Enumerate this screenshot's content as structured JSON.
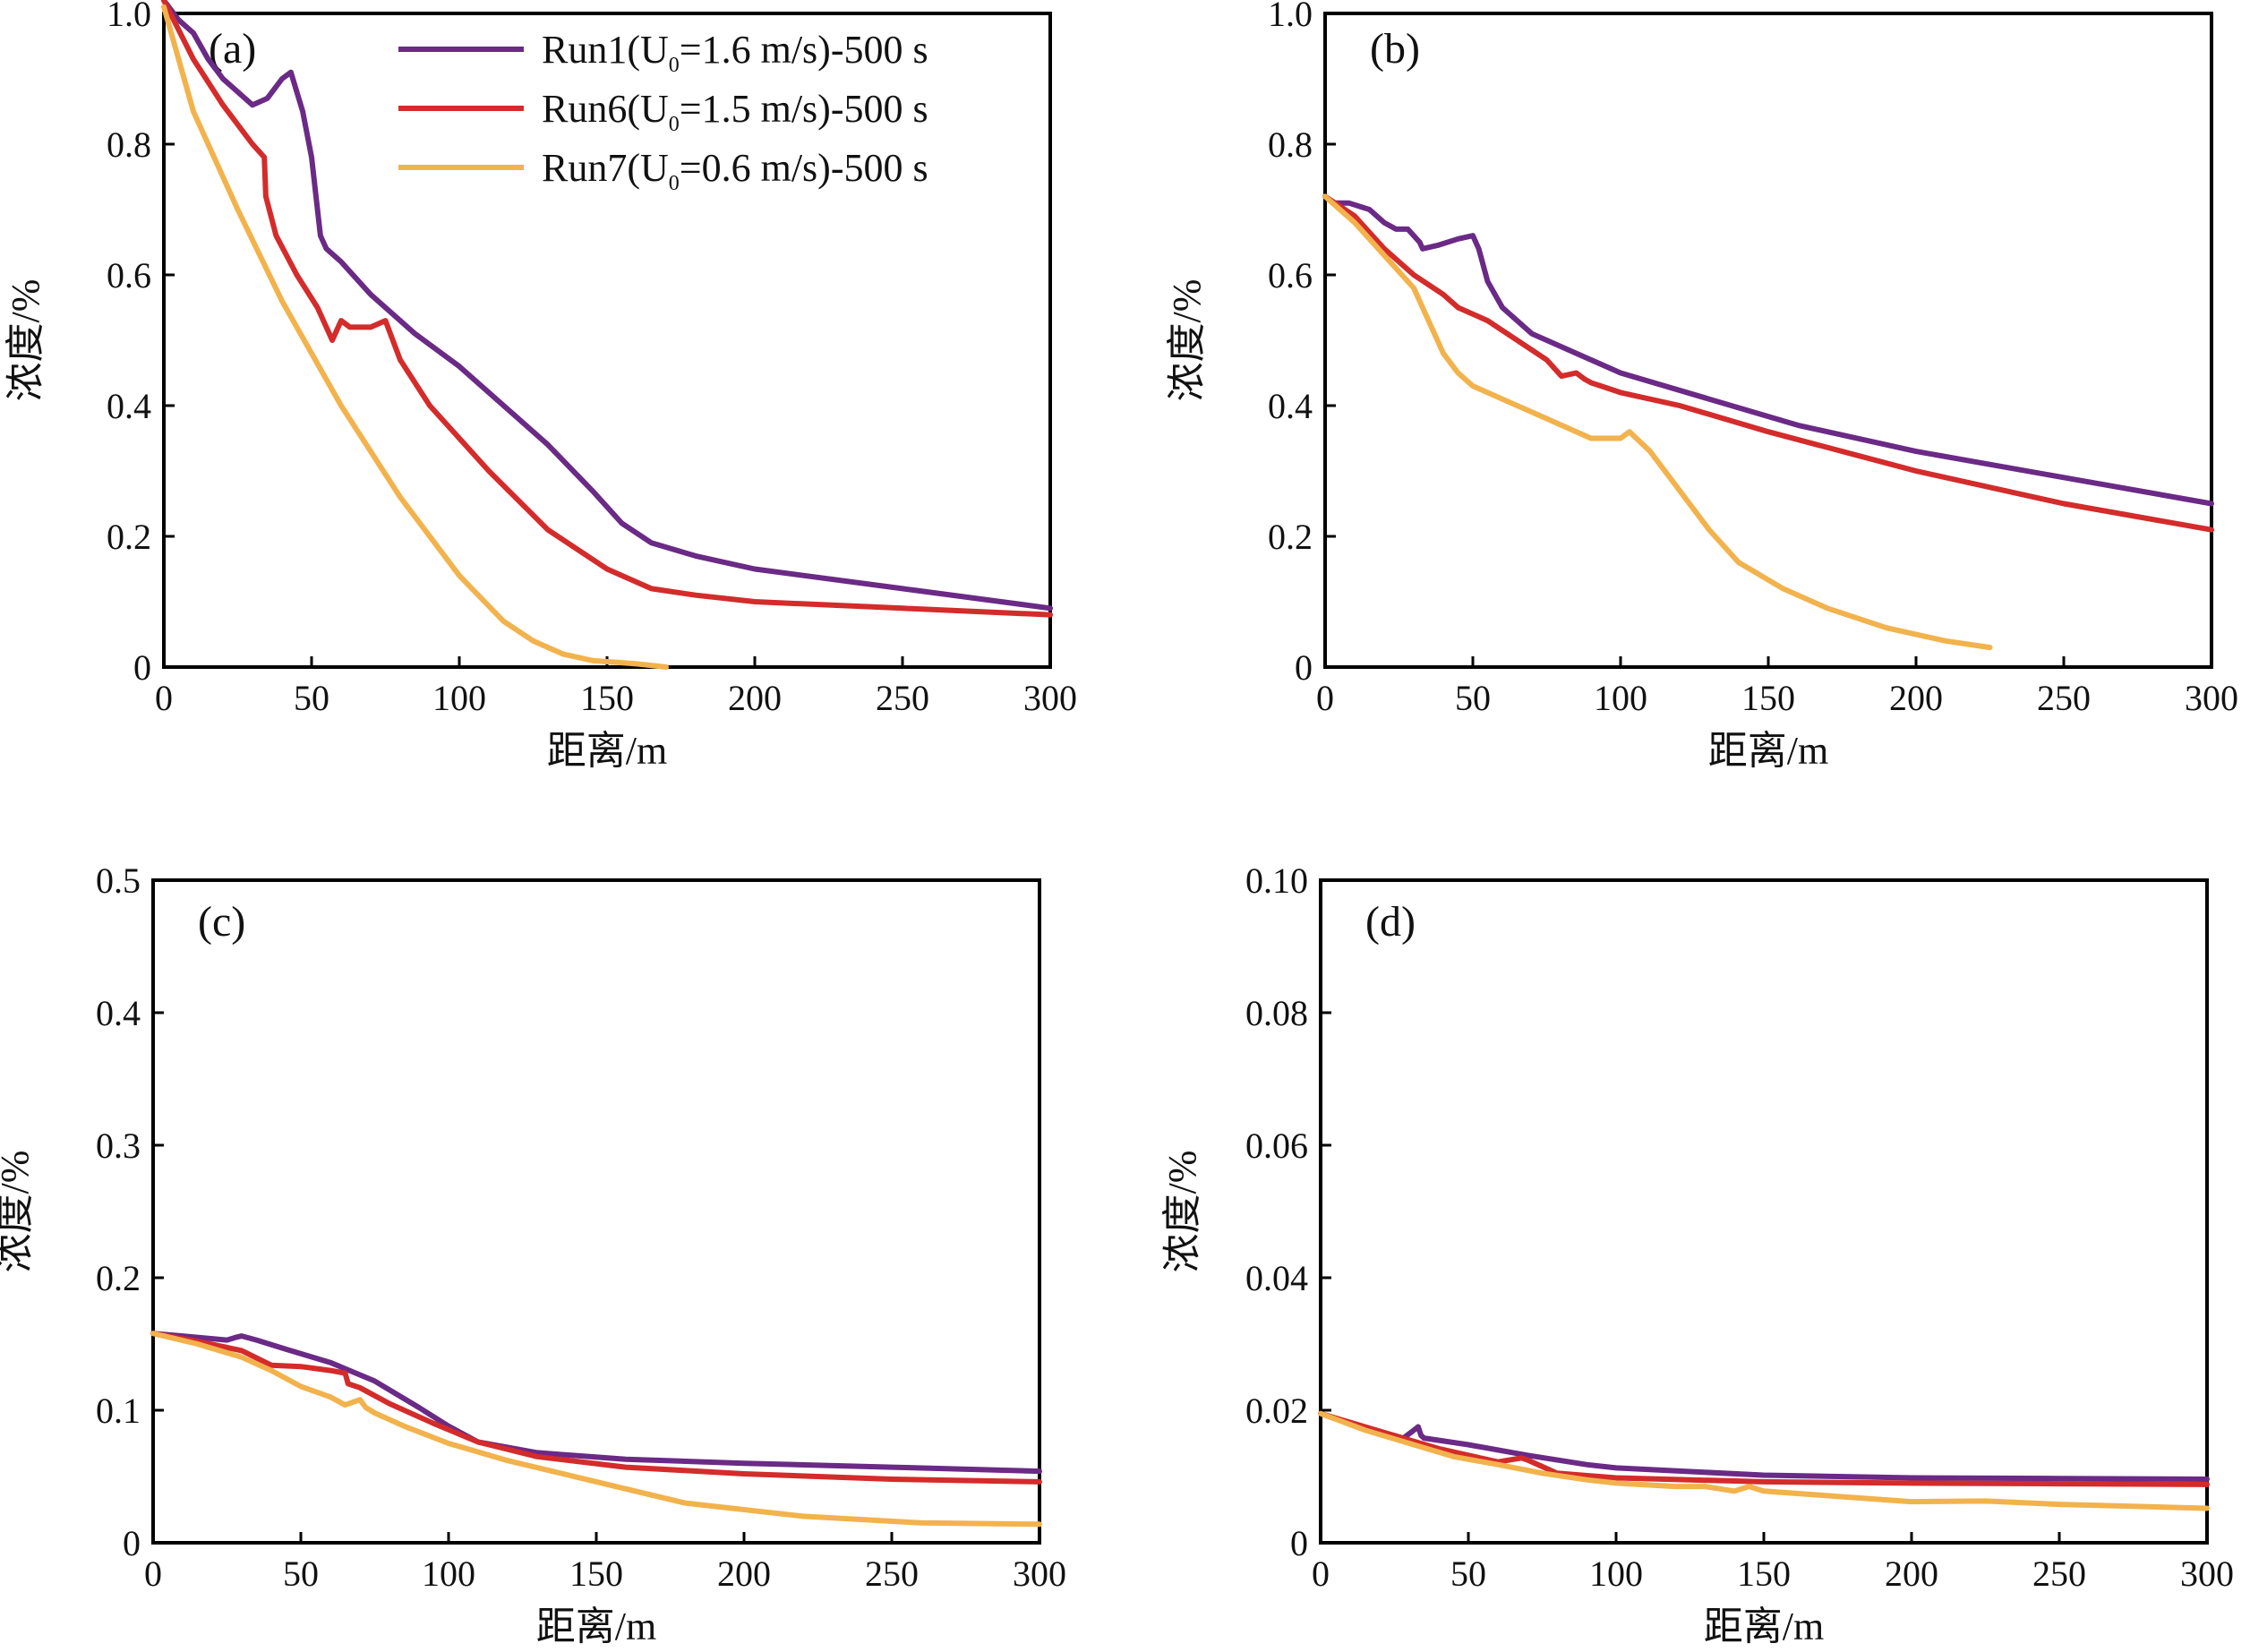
{
  "colors": {
    "Run1": "#6a2a86",
    "Run6": "#d42b2b",
    "Run7": "#f2b24c"
  },
  "legend": [
    {
      "key": "Run1",
      "prefix": "Run1(U",
      "sub": "0",
      "suffix": "=1.6 m/s)-500 s"
    },
    {
      "key": "Run6",
      "prefix": "Run6(U",
      "sub": "0",
      "suffix": "=1.5 m/s)-500 s"
    },
    {
      "key": "Run7",
      "prefix": "Run7(U",
      "sub": "0",
      "suffix": "=0.6 m/s)-500 s"
    }
  ],
  "chart_data": [
    {
      "type": "line",
      "panel": "(a)",
      "xlabel": "距离/m",
      "ylabel": "浓度/%",
      "xlim": [
        0,
        300
      ],
      "ylim": [
        0,
        1.0
      ],
      "xticks": [
        0,
        50,
        100,
        150,
        200,
        250,
        300
      ],
      "yticks": [
        0,
        0.2,
        0.4,
        0.6,
        0.8,
        1.0
      ],
      "ytick_labels": [
        "0",
        "0.2",
        "0.4",
        "0.6",
        "0.8",
        "1.0"
      ],
      "series": [
        {
          "name": "Run1",
          "key": "Run1",
          "x": [
            0,
            5,
            10,
            15,
            20,
            25,
            30,
            35,
            40,
            43,
            47,
            50,
            52,
            53,
            55,
            60,
            70,
            85,
            100,
            115,
            130,
            145,
            155,
            165,
            180,
            200,
            250,
            300
          ],
          "y": [
            1.02,
            0.99,
            0.97,
            0.93,
            0.9,
            0.88,
            0.86,
            0.87,
            0.9,
            0.91,
            0.85,
            0.78,
            0.7,
            0.66,
            0.64,
            0.62,
            0.57,
            0.51,
            0.46,
            0.4,
            0.34,
            0.27,
            0.22,
            0.19,
            0.17,
            0.15,
            0.12,
            0.09
          ]
        },
        {
          "name": "Run6",
          "key": "Run6",
          "x": [
            0,
            10,
            20,
            30,
            34,
            34.5,
            38,
            45,
            52,
            57,
            60,
            63,
            70,
            75,
            80,
            90,
            110,
            130,
            150,
            165,
            180,
            200,
            250,
            300
          ],
          "y": [
            1.02,
            0.93,
            0.86,
            0.8,
            0.78,
            0.72,
            0.66,
            0.6,
            0.55,
            0.5,
            0.53,
            0.52,
            0.52,
            0.53,
            0.47,
            0.4,
            0.3,
            0.21,
            0.15,
            0.12,
            0.11,
            0.1,
            0.09,
            0.08
          ]
        },
        {
          "name": "Run7",
          "key": "Run7",
          "x": [
            0,
            5,
            10,
            15,
            25,
            40,
            60,
            80,
            100,
            115,
            125,
            135,
            145,
            160,
            170
          ],
          "y": [
            1.01,
            0.93,
            0.85,
            0.8,
            0.7,
            0.56,
            0.4,
            0.26,
            0.14,
            0.07,
            0.04,
            0.02,
            0.01,
            0.005,
            0
          ]
        }
      ]
    },
    {
      "type": "line",
      "panel": "(b)",
      "xlabel": "距离/m",
      "ylabel": "浓度/%",
      "xlim": [
        0,
        300
      ],
      "ylim": [
        0,
        1.0
      ],
      "xticks": [
        0,
        50,
        100,
        150,
        200,
        250,
        300
      ],
      "yticks": [
        0,
        0.2,
        0.4,
        0.6,
        0.8,
        1.0
      ],
      "ytick_labels": [
        "0",
        "0.2",
        "0.4",
        "0.6",
        "0.8",
        "1.0"
      ],
      "series": [
        {
          "name": "Run1",
          "key": "Run1",
          "x": [
            0,
            3,
            8,
            15,
            20,
            24,
            28,
            32,
            33,
            38,
            45,
            50,
            52,
            55,
            60,
            70,
            85,
            100,
            130,
            160,
            200,
            250,
            300
          ],
          "y": [
            0.72,
            0.71,
            0.71,
            0.7,
            0.68,
            0.67,
            0.67,
            0.65,
            0.64,
            0.645,
            0.655,
            0.66,
            0.64,
            0.59,
            0.55,
            0.51,
            0.48,
            0.45,
            0.41,
            0.37,
            0.33,
            0.29,
            0.25
          ]
        },
        {
          "name": "Run6",
          "key": "Run6",
          "x": [
            0,
            10,
            20,
            30,
            40,
            45,
            55,
            65,
            75,
            80,
            85,
            88,
            90,
            100,
            120,
            150,
            200,
            250,
            300
          ],
          "y": [
            0.72,
            0.69,
            0.64,
            0.6,
            0.57,
            0.55,
            0.53,
            0.5,
            0.47,
            0.445,
            0.45,
            0.44,
            0.435,
            0.42,
            0.4,
            0.36,
            0.3,
            0.25,
            0.21
          ]
        },
        {
          "name": "Run7",
          "key": "Run7",
          "x": [
            0,
            10,
            20,
            30,
            35,
            40,
            45,
            50,
            60,
            70,
            80,
            90,
            100,
            103,
            110,
            120,
            130,
            140,
            155,
            170,
            190,
            210,
            225
          ],
          "y": [
            0.72,
            0.68,
            0.63,
            0.58,
            0.53,
            0.48,
            0.45,
            0.43,
            0.41,
            0.39,
            0.37,
            0.35,
            0.35,
            0.36,
            0.33,
            0.27,
            0.21,
            0.16,
            0.12,
            0.09,
            0.06,
            0.04,
            0.03
          ]
        }
      ]
    },
    {
      "type": "line",
      "panel": "(c)",
      "xlabel": "距离/m",
      "ylabel": "浓度/%",
      "xlim": [
        0,
        300
      ],
      "ylim": [
        0,
        0.5
      ],
      "xticks": [
        0,
        50,
        100,
        150,
        200,
        250,
        300
      ],
      "yticks": [
        0,
        0.1,
        0.2,
        0.3,
        0.4,
        0.5
      ],
      "ytick_labels": [
        "0",
        "0.1",
        "0.2",
        "0.3",
        "0.4",
        "0.5"
      ],
      "series": [
        {
          "name": "Run1",
          "key": "Run1",
          "x": [
            0,
            10,
            20,
            25,
            28,
            30,
            35,
            45,
            60,
            75,
            90,
            100,
            110,
            130,
            160,
            200,
            250,
            300
          ],
          "y": [
            0.158,
            0.156,
            0.154,
            0.153,
            0.155,
            0.156,
            0.153,
            0.146,
            0.136,
            0.122,
            0.102,
            0.088,
            0.076,
            0.068,
            0.063,
            0.06,
            0.057,
            0.054
          ]
        },
        {
          "name": "Run6",
          "key": "Run6",
          "x": [
            0,
            15,
            30,
            40,
            50,
            60,
            65,
            66,
            70,
            80,
            95,
            110,
            130,
            160,
            200,
            250,
            300
          ],
          "y": [
            0.158,
            0.152,
            0.145,
            0.134,
            0.133,
            0.13,
            0.128,
            0.12,
            0.117,
            0.105,
            0.09,
            0.076,
            0.065,
            0.057,
            0.052,
            0.048,
            0.046
          ]
        },
        {
          "name": "Run7",
          "key": "Run7",
          "x": [
            0,
            15,
            30,
            40,
            50,
            60,
            65,
            70,
            72,
            75,
            85,
            100,
            120,
            150,
            180,
            220,
            260,
            300
          ],
          "y": [
            0.158,
            0.15,
            0.14,
            0.13,
            0.118,
            0.11,
            0.104,
            0.108,
            0.102,
            0.098,
            0.088,
            0.075,
            0.062,
            0.046,
            0.03,
            0.02,
            0.015,
            0.014
          ]
        }
      ]
    },
    {
      "type": "line",
      "panel": "(d)",
      "xlabel": "距离/m",
      "ylabel": "浓度/%",
      "xlim": [
        0,
        300
      ],
      "ylim": [
        0,
        0.1
      ],
      "xticks": [
        0,
        50,
        100,
        150,
        200,
        250,
        300
      ],
      "yticks": [
        0,
        0.02,
        0.04,
        0.06,
        0.08,
        0.1
      ],
      "ytick_labels": [
        "0",
        "0.02",
        "0.04",
        "0.06",
        "0.08",
        "0.10"
      ],
      "series": [
        {
          "name": "Run1",
          "key": "Run1",
          "x": [
            0,
            10,
            20,
            28,
            31,
            33,
            34,
            35,
            50,
            70,
            90,
            100,
            150,
            200,
            250,
            300
          ],
          "y": [
            0.0195,
            0.018,
            0.0168,
            0.0158,
            0.0168,
            0.0175,
            0.0162,
            0.0158,
            0.0148,
            0.0132,
            0.0118,
            0.0113,
            0.0102,
            0.0098,
            0.0097,
            0.0096
          ]
        },
        {
          "name": "Run6",
          "key": "Run6",
          "x": [
            0,
            15,
            30,
            40,
            50,
            60,
            68,
            70,
            75,
            80,
            100,
            150,
            200,
            250,
            300
          ],
          "y": [
            0.0195,
            0.0175,
            0.0155,
            0.0142,
            0.0132,
            0.0122,
            0.0128,
            0.0125,
            0.0115,
            0.0105,
            0.0098,
            0.0092,
            0.009,
            0.0089,
            0.0088
          ]
        },
        {
          "name": "Run7",
          "key": "Run7",
          "x": [
            0,
            15,
            30,
            45,
            60,
            75,
            90,
            100,
            120,
            130,
            140,
            145,
            150,
            175,
            200,
            225,
            250,
            275,
            300
          ],
          "y": [
            0.0195,
            0.017,
            0.015,
            0.013,
            0.0118,
            0.0105,
            0.0095,
            0.009,
            0.0085,
            0.0085,
            0.0078,
            0.0085,
            0.0078,
            0.007,
            0.0062,
            0.0063,
            0.0058,
            0.0055,
            0.0052
          ]
        }
      ]
    }
  ]
}
